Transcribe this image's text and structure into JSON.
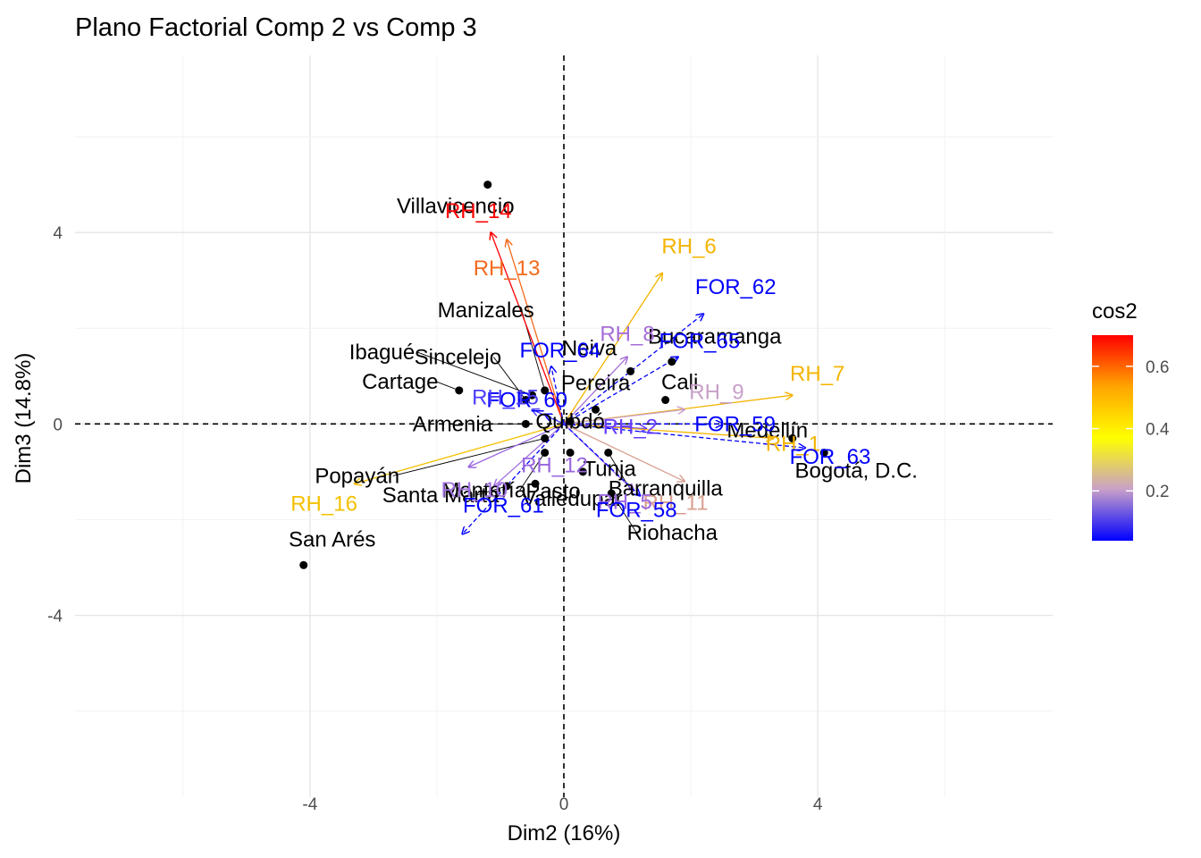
{
  "chart_data": {
    "type": "scatter",
    "title": "Plano Factorial Comp 2 vs Comp 3",
    "xlabel": "Dim2 (16%)",
    "ylabel": "Dim3 (14.8%)",
    "xlim": [
      -7.7,
      7.7
    ],
    "ylim": [
      -7.8,
      7.7
    ],
    "xticks": [
      -4,
      0,
      4
    ],
    "yticks": [
      -4,
      0,
      4
    ],
    "grid": true,
    "reference_lines": {
      "x": 0,
      "y": 0
    },
    "legend": {
      "title": "cos2",
      "placement": "right",
      "range": [
        0.04,
        0.7
      ],
      "ticks": [
        0.2,
        0.4,
        0.6
      ],
      "colors": [
        "#0000ff",
        "#c8a0c8",
        "#ffff00",
        "#ffa500",
        "#ff0000"
      ]
    },
    "individuals": [
      {
        "name": "Villavicencio",
        "x": -1.2,
        "y": 5.0
      },
      {
        "name": "Manizales",
        "x": -0.3,
        "y": 0.7
      },
      {
        "name": "Ibagué",
        "x": -0.5,
        "y": 0.6
      },
      {
        "name": "Sincelejo",
        "x": -0.6,
        "y": 0.5
      },
      {
        "name": "Neiva",
        "x": 1.05,
        "y": 1.1
      },
      {
        "name": "Bucaramanga",
        "x": 1.7,
        "y": 1.3
      },
      {
        "name": "Cartage",
        "x": -1.65,
        "y": 0.7
      },
      {
        "name": "Pereira",
        "x": 0.5,
        "y": 0.3
      },
      {
        "name": "Cali",
        "x": 1.6,
        "y": 0.5
      },
      {
        "name": "Armenia",
        "x": -0.6,
        "y": 0.0
      },
      {
        "name": "Quibdó",
        "x": 0.1,
        "y": 0.05
      },
      {
        "name": "Medellín",
        "x": 3.6,
        "y": -0.3
      },
      {
        "name": "Tunja",
        "x": 0.1,
        "y": -0.6
      },
      {
        "name": "Popayán",
        "x": -0.3,
        "y": -0.3
      },
      {
        "name": "Montería",
        "x": -0.3,
        "y": -0.6
      },
      {
        "name": "Bogotá, D.C.",
        "x": 4.1,
        "y": -0.6
      },
      {
        "name": "Pasto",
        "x": -0.45,
        "y": -1.25
      },
      {
        "name": "Barranquilla",
        "x": 0.7,
        "y": -0.6
      },
      {
        "name": "Santa Marta",
        "x": -0.9,
        "y": -1.3
      },
      {
        "name": "Valledupar",
        "x": 0.3,
        "y": -1.0
      },
      {
        "name": "Riohacha",
        "x": 0.75,
        "y": -1.45
      },
      {
        "name": "San Arés",
        "x": -4.1,
        "y": -2.95
      }
    ],
    "variables": [
      {
        "name": "RH_14",
        "x": -1.15,
        "y": 4.0,
        "cos2": 0.69,
        "color": "#ff0000"
      },
      {
        "name": "RH_13",
        "x": -0.9,
        "y": 3.85,
        "cos2": 0.6,
        "color": "#f46a1c"
      },
      {
        "name": "RH_6",
        "x": 1.55,
        "y": 3.15,
        "cos2": 0.45,
        "color": "#f4b400"
      },
      {
        "name": "FOR_62",
        "x": 2.2,
        "y": 2.3,
        "cos2": 0.04,
        "color": "#0000ff"
      },
      {
        "name": "RH_8",
        "x": 1.0,
        "y": 1.4,
        "cos2": 0.15,
        "color": "#a66ed8"
      },
      {
        "name": "FOR_64",
        "x": -0.2,
        "y": 1.2,
        "cos2": 0.04,
        "color": "#0000ff"
      },
      {
        "name": "FOR_65",
        "x": 1.8,
        "y": 1.4,
        "cos2": 0.04,
        "color": "#0000ff"
      },
      {
        "name": "RH_7",
        "x": 3.6,
        "y": 0.6,
        "cos2": 0.45,
        "color": "#f4b400"
      },
      {
        "name": "RH_9",
        "x": 1.9,
        "y": 0.3,
        "cos2": 0.22,
        "color": "#c8a0c8"
      },
      {
        "name": "FOR_60",
        "x": -0.3,
        "y": 0.2,
        "cos2": 0.04,
        "color": "#0000ff"
      },
      {
        "name": "RH_15",
        "x": -0.5,
        "y": 0.3,
        "cos2": 0.08,
        "color": "#4b3cff"
      },
      {
        "name": "FOR_59",
        "x": 2.5,
        "y": 0.0,
        "cos2": 0.04,
        "color": "#0000ff"
      },
      {
        "name": "RH_2",
        "x": 1.3,
        "y": -0.1,
        "cos2": 0.1,
        "color": "#6a3cff"
      },
      {
        "name": "RH_1",
        "x": 3.3,
        "y": -0.3,
        "cos2": 0.45,
        "color": "#f4b400"
      },
      {
        "name": "FOR_63",
        "x": 3.8,
        "y": -0.5,
        "cos2": 0.04,
        "color": "#0000ff"
      },
      {
        "name": "RH_11",
        "x": 1.9,
        "y": -1.2,
        "cos2": 0.25,
        "color": "#d8a090"
      },
      {
        "name": "RH_12",
        "x": -1.5,
        "y": -0.9,
        "cos2": 0.14,
        "color": "#9966e0"
      },
      {
        "name": "RH_16",
        "x": -3.3,
        "y": -1.25,
        "cos2": 0.45,
        "color": "#f4c000"
      },
      {
        "name": "RH_10",
        "x": -1.1,
        "y": -1.3,
        "cos2": 0.12,
        "color": "#a070e0"
      },
      {
        "name": "FOR_61",
        "x": -1.6,
        "y": -2.3,
        "cos2": 0.04,
        "color": "#0000ff"
      },
      {
        "name": "RH_5",
        "x": 1.1,
        "y": -1.4,
        "cos2": 0.12,
        "color": "#9966e0"
      },
      {
        "name": "FOR_58",
        "x": 1.2,
        "y": -1.5,
        "cos2": 0.04,
        "color": "#0000ff"
      }
    ]
  }
}
